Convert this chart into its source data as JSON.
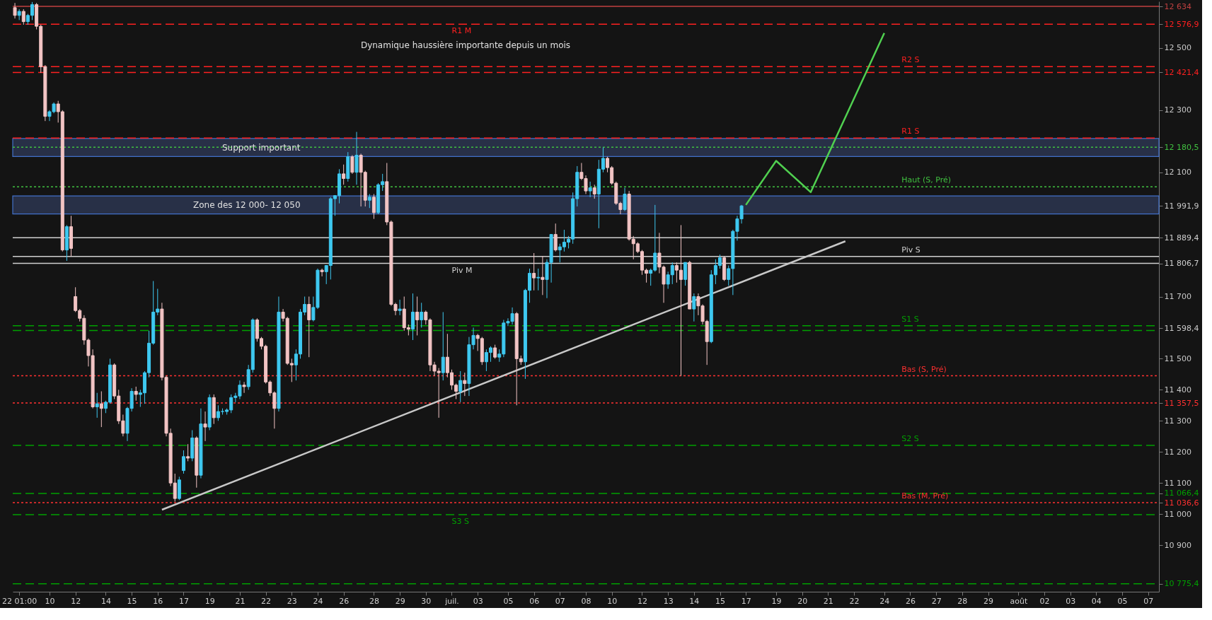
{
  "chart_data": {
    "type": "candlestick",
    "annotations": [
      "Dynamique haussière importante depuis un mois"
    ],
    "categories": [
      null,
      "22 01:00",
      null,
      null,
      null,
      null,
      null,
      null,
      "10",
      null,
      null,
      null,
      null,
      null,
      "12",
      null,
      null,
      null,
      null,
      null,
      null,
      "14",
      null,
      null,
      null,
      null,
      null,
      "15",
      null,
      null,
      null,
      null,
      null,
      "16",
      null,
      null,
      null,
      null,
      null,
      "17",
      null,
      null,
      null,
      null,
      null,
      "19",
      null,
      null,
      null,
      null,
      null,
      null,
      "21",
      null,
      null,
      null,
      null,
      null,
      "22",
      null,
      null,
      null,
      null,
      null,
      "23",
      null,
      null,
      null,
      null,
      null,
      "24",
      null,
      null,
      null,
      null,
      null,
      "26",
      null,
      null,
      null,
      null,
      null,
      null,
      "28",
      null,
      null,
      null,
      null,
      null,
      "29",
      null,
      null,
      null,
      null,
      null,
      "30",
      null,
      null,
      null,
      null,
      null,
      "juil.",
      null,
      null,
      null,
      null,
      null,
      "03",
      null,
      null,
      null,
      null,
      null,
      null,
      "05",
      null,
      null,
      null,
      null,
      null,
      "06",
      null,
      null,
      null,
      null,
      null,
      "07",
      null,
      null,
      null,
      null,
      null,
      "08",
      null,
      null,
      null,
      null,
      null,
      "10",
      null,
      null,
      null,
      null,
      null,
      null,
      "12",
      null,
      null,
      null,
      null,
      null,
      "13",
      null,
      null,
      null,
      null,
      null,
      "14",
      null,
      null,
      null,
      null,
      null,
      "15",
      null,
      null,
      null,
      null,
      null,
      "17",
      null,
      null,
      null,
      null,
      null,
      null,
      "19",
      null,
      null,
      null,
      null,
      null,
      "20",
      null,
      null,
      null,
      null,
      null,
      "21",
      null,
      null,
      null,
      null,
      null,
      "22",
      null,
      null,
      null,
      null,
      null,
      null,
      "24",
      null,
      null,
      null,
      null,
      null,
      "26",
      null,
      null,
      null,
      null,
      null,
      "27",
      null,
      null,
      null,
      null,
      null,
      "28",
      null,
      null,
      null,
      null,
      null,
      "29",
      null,
      null,
      null,
      null,
      null,
      null,
      "août",
      null,
      null,
      null,
      null,
      null,
      "02",
      null,
      null,
      null,
      null,
      null,
      "03",
      null,
      null,
      null,
      null,
      null,
      "04",
      null,
      null,
      null,
      null,
      null,
      "05",
      null,
      null,
      null,
      null,
      null,
      "07",
      null,
      null
    ],
    "ohlc": [
      [
        12630,
        12645,
        12595,
        12605
      ],
      [
        12605,
        12625,
        12590,
        12618
      ],
      [
        12618,
        12625,
        12575,
        12585
      ],
      [
        12585,
        12610,
        12575,
        12605
      ],
      [
        12605,
        12648,
        12590,
        12640
      ],
      [
        12640,
        12645,
        12560,
        12570
      ],
      [
        12570,
        12575,
        12420,
        12440
      ],
      [
        12440,
        12445,
        12265,
        12280
      ],
      [
        12280,
        12300,
        12265,
        12295
      ],
      [
        12295,
        12325,
        12290,
        12320
      ],
      [
        12320,
        12330,
        12260,
        12295
      ],
      [
        12295,
        12300,
        11845,
        11850
      ],
      [
        11850,
        11930,
        11815,
        11925
      ],
      [
        11925,
        11960,
        11830,
        11855
      ],
      [
        11700,
        11730,
        11650,
        11655
      ],
      [
        11655,
        11660,
        11620,
        11630
      ],
      [
        11630,
        11640,
        11545,
        11560
      ],
      [
        11560,
        11565,
        11475,
        11510
      ],
      [
        11510,
        11530,
        11340,
        11345
      ],
      [
        11345,
        11390,
        11310,
        11355
      ],
      [
        11355,
        11395,
        11280,
        11340
      ],
      [
        11340,
        11365,
        11325,
        11360
      ],
      [
        11360,
        11500,
        11355,
        11480
      ],
      [
        11480,
        11485,
        11370,
        11380
      ],
      [
        11380,
        11400,
        11290,
        11300
      ],
      [
        11300,
        11320,
        11250,
        11260
      ],
      [
        11260,
        11345,
        11235,
        11340
      ],
      [
        11340,
        11405,
        11330,
        11395
      ],
      [
        11395,
        11410,
        11365,
        11385
      ],
      [
        11385,
        11400,
        11345,
        11390
      ],
      [
        11390,
        11460,
        11355,
        11455
      ],
      [
        11455,
        11590,
        11440,
        11550
      ],
      [
        11550,
        11750,
        11545,
        11650
      ],
      [
        11650,
        11725,
        11640,
        11660
      ],
      [
        11660,
        11680,
        11430,
        11440
      ],
      [
        11440,
        11445,
        11250,
        11260
      ],
      [
        11260,
        11275,
        11090,
        11100
      ],
      [
        11100,
        11130,
        11040,
        11050
      ],
      [
        11050,
        11120,
        11045,
        11110
      ],
      [
        11140,
        11205,
        11130,
        11185
      ],
      [
        11185,
        11225,
        11170,
        11180
      ],
      [
        11180,
        11270,
        11170,
        11245
      ],
      [
        11245,
        11250,
        11085,
        11125
      ],
      [
        11125,
        11340,
        11115,
        11290
      ],
      [
        11290,
        11330,
        11235,
        11280
      ],
      [
        11280,
        11385,
        11270,
        11375
      ],
      [
        11375,
        11385,
        11290,
        11310
      ],
      [
        11310,
        11350,
        11300,
        11330
      ],
      [
        11330,
        11340,
        11320,
        11330
      ],
      [
        11330,
        11340,
        11320,
        11335
      ],
      [
        11335,
        11385,
        11325,
        11375
      ],
      [
        11375,
        11390,
        11360,
        11380
      ],
      [
        11380,
        11430,
        11370,
        11415
      ],
      [
        11415,
        11425,
        11390,
        11410
      ],
      [
        11410,
        11480,
        11400,
        11465
      ],
      [
        11465,
        11630,
        11455,
        11625
      ],
      [
        11625,
        11630,
        11555,
        11565
      ],
      [
        11565,
        11570,
        11530,
        11540
      ],
      [
        11540,
        11545,
        11420,
        11425
      ],
      [
        11425,
        11430,
        11380,
        11390
      ],
      [
        11390,
        11395,
        11275,
        11340
      ],
      [
        11340,
        11700,
        11330,
        11650
      ],
      [
        11650,
        11660,
        11620,
        11630
      ],
      [
        11630,
        11635,
        11480,
        11485
      ],
      [
        11485,
        11500,
        11425,
        11480
      ],
      [
        11480,
        11530,
        11430,
        11515
      ],
      [
        11515,
        11660,
        11500,
        11650
      ],
      [
        11650,
        11700,
        11640,
        11675
      ],
      [
        11675,
        11700,
        11505,
        11625
      ],
      [
        11625,
        11700,
        11620,
        11665
      ],
      [
        11665,
        11790,
        11660,
        11785
      ],
      [
        11785,
        11790,
        11765,
        11780
      ],
      [
        11780,
        11800,
        11740,
        11800
      ],
      [
        11800,
        12020,
        11755,
        12015
      ],
      [
        12015,
        12025,
        11960,
        12025
      ],
      [
        12025,
        12110,
        12000,
        12095
      ],
      [
        12095,
        12125,
        12060,
        12080
      ],
      [
        12080,
        12165,
        12070,
        12150
      ],
      [
        12150,
        12155,
        12095,
        12100
      ],
      [
        12100,
        12230,
        12060,
        12155
      ],
      [
        12155,
        12160,
        11990,
        12100
      ],
      [
        12100,
        12105,
        11990,
        12010
      ],
      [
        12010,
        12030,
        11985,
        12020
      ],
      [
        12020,
        12030,
        11950,
        11970
      ],
      [
        11970,
        12065,
        11965,
        12060
      ],
      [
        12060,
        12095,
        12040,
        12070
      ],
      [
        12070,
        12130,
        11930,
        11940
      ],
      [
        11940,
        11945,
        11670,
        11675
      ],
      [
        11675,
        11680,
        11640,
        11655
      ],
      [
        11655,
        11690,
        11640,
        11660
      ],
      [
        11660,
        11700,
        11590,
        11600
      ],
      [
        11600,
        11610,
        11575,
        11595
      ],
      [
        11595,
        11710,
        11560,
        11650
      ],
      [
        11650,
        11700,
        11575,
        11625
      ],
      [
        11625,
        11680,
        11600,
        11650
      ],
      [
        11650,
        11655,
        11610,
        11625
      ],
      [
        11625,
        11630,
        11460,
        11480
      ],
      [
        11480,
        11490,
        11445,
        11460
      ],
      [
        11460,
        11470,
        11310,
        11455
      ],
      [
        11455,
        11650,
        11430,
        11505
      ],
      [
        11505,
        11580,
        11440,
        11455
      ],
      [
        11455,
        11465,
        11400,
        11415
      ],
      [
        11415,
        11420,
        11370,
        11395
      ],
      [
        11395,
        11460,
        11360,
        11430
      ],
      [
        11430,
        11455,
        11380,
        11420
      ],
      [
        11420,
        11570,
        11380,
        11545
      ],
      [
        11545,
        11600,
        11530,
        11575
      ],
      [
        11575,
        11580,
        11525,
        11565
      ],
      [
        11565,
        11570,
        11480,
        11490
      ],
      [
        11490,
        11530,
        11460,
        11520
      ],
      [
        11520,
        11540,
        11490,
        11535
      ],
      [
        11535,
        11545,
        11500,
        11505
      ],
      [
        11505,
        11530,
        11490,
        11515
      ],
      [
        11515,
        11625,
        11505,
        11615
      ],
      [
        11615,
        11630,
        11605,
        11620
      ],
      [
        11620,
        11665,
        11610,
        11645
      ],
      [
        11645,
        11650,
        11350,
        11500
      ],
      [
        11500,
        11510,
        11480,
        11490
      ],
      [
        11490,
        11725,
        11435,
        11720
      ],
      [
        11720,
        11790,
        11680,
        11775
      ],
      [
        11775,
        11840,
        11720,
        11760
      ],
      [
        11760,
        11790,
        11720,
        11762
      ],
      [
        11762,
        11830,
        11705,
        11755
      ],
      [
        11755,
        11820,
        11695,
        11810
      ],
      [
        11810,
        11900,
        11745,
        11900
      ],
      [
        11900,
        11935,
        11845,
        11850
      ],
      [
        11850,
        11870,
        11810,
        11860
      ],
      [
        11860,
        11915,
        11845,
        11875
      ],
      [
        11875,
        11895,
        11855,
        11885
      ],
      [
        11885,
        12035,
        11870,
        12015
      ],
      [
        12015,
        12120,
        11990,
        12100
      ],
      [
        12100,
        12130,
        12075,
        12080
      ],
      [
        12080,
        12090,
        12030,
        12040
      ],
      [
        12040,
        12070,
        12020,
        12050
      ],
      [
        12050,
        12060,
        12015,
        12030
      ],
      [
        12030,
        12140,
        11920,
        12110
      ],
      [
        12110,
        12180,
        12100,
        12145
      ],
      [
        12145,
        12150,
        12100,
        12115
      ],
      [
        12115,
        12120,
        12060,
        12065
      ],
      [
        12065,
        12070,
        11995,
        12000
      ],
      [
        12000,
        12005,
        11965,
        11980
      ],
      [
        11980,
        12050,
        11975,
        12030
      ],
      [
        12030,
        12040,
        11880,
        11885
      ],
      [
        11885,
        11895,
        11820,
        11870
      ],
      [
        11870,
        11875,
        11840,
        11845
      ],
      [
        11845,
        11850,
        11770,
        11785
      ],
      [
        11785,
        11790,
        11745,
        11775
      ],
      [
        11775,
        11790,
        11735,
        11785
      ],
      [
        11785,
        11995,
        11780,
        11840
      ],
      [
        11840,
        11905,
        11775,
        11795
      ],
      [
        11795,
        11800,
        11680,
        11740
      ],
      [
        11740,
        11780,
        11725,
        11770
      ],
      [
        11770,
        11810,
        11740,
        11800
      ],
      [
        11800,
        11810,
        11745,
        11785
      ],
      [
        11785,
        11930,
        11445,
        11755
      ],
      [
        11755,
        11810,
        11735,
        11810
      ],
      [
        11810,
        11815,
        11660,
        11660
      ],
      [
        11660,
        11710,
        11620,
        11700
      ],
      [
        11700,
        11710,
        11640,
        11670
      ],
      [
        11670,
        11675,
        11610,
        11620
      ],
      [
        11620,
        11625,
        11480,
        11555
      ],
      [
        11555,
        11785,
        11550,
        11770
      ],
      [
        11770,
        11820,
        11740,
        11800
      ],
      [
        11800,
        11835,
        11790,
        11825
      ],
      [
        11825,
        11830,
        11750,
        11755
      ],
      [
        11755,
        11800,
        11735,
        11790
      ],
      [
        11790,
        11915,
        11705,
        11910
      ],
      [
        11910,
        11960,
        11880,
        11950
      ],
      [
        11950,
        11995,
        11935,
        11991.9
      ],
      null,
      null,
      null,
      null,
      null,
      null,
      null,
      null,
      null,
      null,
      null,
      null,
      null,
      null,
      null,
      null,
      null,
      null,
      null,
      null,
      null,
      null,
      null,
      null,
      null,
      null,
      null,
      null,
      null,
      null,
      null,
      null,
      null,
      null,
      null,
      null,
      null,
      null,
      null,
      null,
      null,
      null,
      null,
      null,
      null,
      null,
      null,
      null,
      null,
      null,
      null,
      null,
      null,
      null,
      null,
      null,
      null,
      null,
      null,
      null,
      null,
      null,
      null,
      null,
      null,
      null,
      null,
      null,
      null,
      null,
      null,
      null,
      null,
      null,
      null,
      null,
      null,
      null,
      null,
      null,
      null,
      null,
      null,
      null,
      null,
      null,
      null,
      null,
      null,
      null,
      null,
      null,
      null,
      null,
      null,
      null
    ],
    "series": [
      {
        "type": "line",
        "color": "#c8c8c8",
        "values": [
          null,
          null,
          null,
          null,
          null,
          null,
          null,
          null,
          null,
          null,
          null,
          null,
          null,
          null,
          null,
          null,
          null,
          null,
          null,
          null,
          null,
          null,
          null,
          null,
          null,
          null,
          null,
          null,
          null,
          null,
          null,
          null,
          null,
          null,
          11014,
          null,
          null,
          null,
          null,
          null,
          null,
          null,
          null,
          null,
          null,
          null,
          null,
          null,
          null,
          null,
          null,
          null,
          null,
          null,
          null,
          null,
          null,
          null,
          null,
          null,
          null,
          null,
          null,
          null,
          null,
          null,
          null,
          null,
          null,
          null,
          null,
          null,
          null,
          null,
          null,
          null,
          null,
          null,
          null,
          null,
          null,
          null,
          null,
          null,
          null,
          null,
          null,
          null,
          null,
          null,
          null,
          null,
          null,
          null,
          null,
          null,
          null,
          null,
          null,
          null,
          null,
          null,
          null,
          null,
          null,
          null,
          null,
          null,
          null,
          null,
          null,
          null,
          null,
          null,
          null,
          null,
          null,
          null,
          null,
          null,
          null,
          null,
          null,
          null,
          null,
          null,
          null,
          null,
          null,
          null,
          null,
          null,
          null,
          null,
          null,
          null,
          null,
          null,
          null,
          null,
          null,
          null,
          null,
          null,
          null,
          null,
          null,
          null,
          null,
          null,
          null,
          null,
          null,
          null,
          null,
          null,
          null,
          null,
          null,
          null,
          null,
          null,
          null,
          null,
          null,
          null,
          null,
          null,
          null,
          null,
          null,
          null,
          null,
          null,
          null,
          null,
          null,
          null,
          null,
          null,
          null,
          null,
          null,
          null,
          null,
          null,
          null,
          null,
          null,
          null,
          null,
          null,
          11878,
          null,
          null,
          null,
          null,
          null,
          null,
          null,
          null,
          null,
          null,
          null,
          null,
          null,
          null,
          null,
          null,
          null,
          null,
          null,
          null,
          null,
          null,
          null,
          null,
          null,
          null,
          null,
          null,
          null,
          null,
          null,
          null,
          null,
          null,
          null,
          null,
          null,
          null,
          null,
          null,
          null,
          null,
          null,
          null,
          null,
          null,
          null,
          null,
          null,
          null,
          null,
          null,
          null,
          null,
          null,
          null,
          null,
          null,
          null,
          null,
          null,
          null,
          null,
          null,
          null,
          null,
          null,
          null,
          null,
          null,
          null,
          null
        ]
      },
      {
        "type": "line",
        "color": "#50d050",
        "values": [
          null,
          null,
          null,
          null,
          null,
          null,
          null,
          null,
          null,
          null,
          null,
          null,
          null,
          null,
          null,
          null,
          null,
          null,
          null,
          null,
          null,
          null,
          null,
          null,
          null,
          null,
          null,
          null,
          null,
          null,
          null,
          null,
          null,
          null,
          null,
          null,
          null,
          null,
          null,
          null,
          null,
          null,
          null,
          null,
          null,
          null,
          null,
          null,
          null,
          null,
          null,
          null,
          null,
          null,
          null,
          null,
          null,
          null,
          null,
          null,
          null,
          null,
          null,
          null,
          null,
          null,
          null,
          null,
          null,
          null,
          null,
          null,
          null,
          null,
          null,
          null,
          null,
          null,
          null,
          null,
          null,
          null,
          null,
          null,
          null,
          null,
          null,
          null,
          null,
          null,
          null,
          null,
          null,
          null,
          null,
          null,
          null,
          null,
          null,
          null,
          null,
          null,
          null,
          null,
          null,
          null,
          null,
          null,
          null,
          null,
          null,
          null,
          null,
          null,
          null,
          null,
          null,
          null,
          null,
          null,
          null,
          null,
          null,
          null,
          null,
          null,
          null,
          null,
          null,
          null,
          null,
          null,
          null,
          null,
          null,
          null,
          null,
          null,
          null,
          null,
          null,
          null,
          null,
          null,
          null,
          null,
          null,
          null,
          null,
          null,
          null,
          null,
          null,
          null,
          null,
          null,
          null,
          null,
          null,
          null,
          null,
          null,
          null,
          null,
          null,
          null,
          null,
          null,
          null,
          11995,
          null,
          null,
          null,
          null,
          null,
          null,
          12137,
          null,
          null,
          null,
          null,
          null,
          null,
          null,
          12036,
          null,
          null,
          null,
          null,
          null,
          null,
          null,
          null,
          null,
          null,
          null,
          null,
          null,
          null,
          null,
          null,
          12548,
          null,
          null,
          null,
          null,
          null,
          null,
          null,
          null,
          null,
          null,
          null,
          null,
          null,
          null,
          null,
          null,
          null,
          null,
          null,
          null,
          null,
          null,
          null,
          null,
          null,
          null,
          null,
          null,
          null,
          null,
          null,
          null,
          null,
          null,
          null,
          null,
          null,
          null,
          null,
          null,
          null,
          null,
          null,
          null,
          null,
          null,
          null,
          null,
          null,
          null,
          null,
          null,
          null,
          null,
          null,
          null,
          null,
          null,
          null,
          null,
          null,
          null,
          null
        ]
      }
    ],
    "ref_lines": [
      {
        "axis": "y",
        "value": 12634,
        "label": null,
        "color": "#c04040",
        "line_style": "solid"
      },
      {
        "axis": "y",
        "value": 12576.9,
        "label": "R1 M",
        "color": "#ff2020",
        "line_style": "dashed"
      },
      {
        "axis": "y",
        "value": 12440,
        "label": "R2 S",
        "color": "#ff2020",
        "line_style": "dashed"
      },
      {
        "axis": "y",
        "value": 12421.4,
        "label": null,
        "color": "#ff2020",
        "line_style": "dashed"
      },
      {
        "axis": "y",
        "value": 12210,
        "label": "R1 S",
        "color": "#ff2020",
        "line_style": "dashed"
      },
      {
        "axis": "y",
        "value": 12180.5,
        "label": null,
        "color": "#40c040",
        "line_style": "dotted"
      },
      {
        "axis": "y",
        "value": 12053,
        "label": "Haut (S, Pré)",
        "color": "#40c040",
        "line_style": "dotted"
      },
      {
        "axis": "y",
        "value": 11889.4,
        "label": null,
        "color": "#d0d0d0",
        "line_style": "solid"
      },
      {
        "axis": "y",
        "value": 11829,
        "label": "Piv S",
        "color": "#d0d0d0",
        "line_style": "solid"
      },
      {
        "axis": "y",
        "value": 11806.7,
        "label": "Piv M",
        "color": "#d0d0d0",
        "line_style": "solid"
      },
      {
        "axis": "y",
        "value": 11606,
        "label": "S1 S",
        "color": "#00a000",
        "line_style": "dashed"
      },
      {
        "axis": "y",
        "value": 11591,
        "label": null,
        "color": "#00a000",
        "line_style": "dashed"
      },
      {
        "axis": "y",
        "value": 11445,
        "label": "Bas (S, Pré)",
        "color": "#ff3030",
        "line_style": "dotted"
      },
      {
        "axis": "y",
        "value": 11357.5,
        "label": null,
        "color": "#ff3030",
        "line_style": "dotted"
      },
      {
        "axis": "y",
        "value": 11221,
        "label": "S2 S",
        "color": "#00a000",
        "line_style": "dashed"
      },
      {
        "axis": "y",
        "value": 11066.4,
        "label": null,
        "color": "#00a000",
        "line_style": "dashed"
      },
      {
        "axis": "y",
        "value": 11036.6,
        "label": "Bas (M, Pré)",
        "color": "#ff3030",
        "line_style": "dotted"
      },
      {
        "axis": "y",
        "value": 10998,
        "label": "S3 S",
        "color": "#00a000",
        "line_style": "dashed"
      },
      {
        "axis": "y",
        "value": 10775.4,
        "label": null,
        "color": "#00a000",
        "line_style": "dashed"
      }
    ],
    "bands": [
      {
        "axis": "y",
        "from": 12151,
        "to": 12209,
        "label": "Support important",
        "color": "#2c3550"
      },
      {
        "axis": "y",
        "from": 11966,
        "to": 12024,
        "label": "Zone des 12 000- 12 050",
        "color": "#2c3550"
      }
    ],
    "ylim": [
      10750,
      12650
    ],
    "yticks": [
      {
        "value": 10775.4,
        "label": "10 775,4"
      },
      {
        "value": 10900,
        "label": "10 900"
      },
      {
        "value": 11000,
        "label": "11 000"
      },
      {
        "value": 11036.6,
        "label": "11 036,6"
      },
      {
        "value": 11066.4,
        "label": "11 066,4"
      },
      {
        "value": 11100,
        "label": "11 100"
      },
      {
        "value": 11200,
        "label": "11 200"
      },
      {
        "value": 11300,
        "label": "11 300"
      },
      {
        "value": 11357.5,
        "label": "11 357,5"
      },
      {
        "value": 11400,
        "label": "11 400"
      },
      {
        "value": 11500,
        "label": "11 500"
      },
      {
        "value": 11598.4,
        "label": "11 598,4"
      },
      {
        "value": 11700,
        "label": "11 700"
      },
      {
        "value": 11806.7,
        "label": "11 806,7"
      },
      {
        "value": 11889.4,
        "label": "11 889,4"
      },
      {
        "value": 11991.9,
        "label": "11 991,9"
      },
      {
        "value": 12100,
        "label": "12 100"
      },
      {
        "value": 12180.5,
        "label": "12 180,5"
      },
      {
        "value": 12300,
        "label": "12 300"
      },
      {
        "value": 12421.4,
        "label": "12 421,4"
      },
      {
        "value": 12500,
        "label": "12 500"
      },
      {
        "value": 12576.9,
        "label": "12 576,9"
      },
      {
        "value": 12634,
        "label": "12 634"
      }
    ]
  }
}
